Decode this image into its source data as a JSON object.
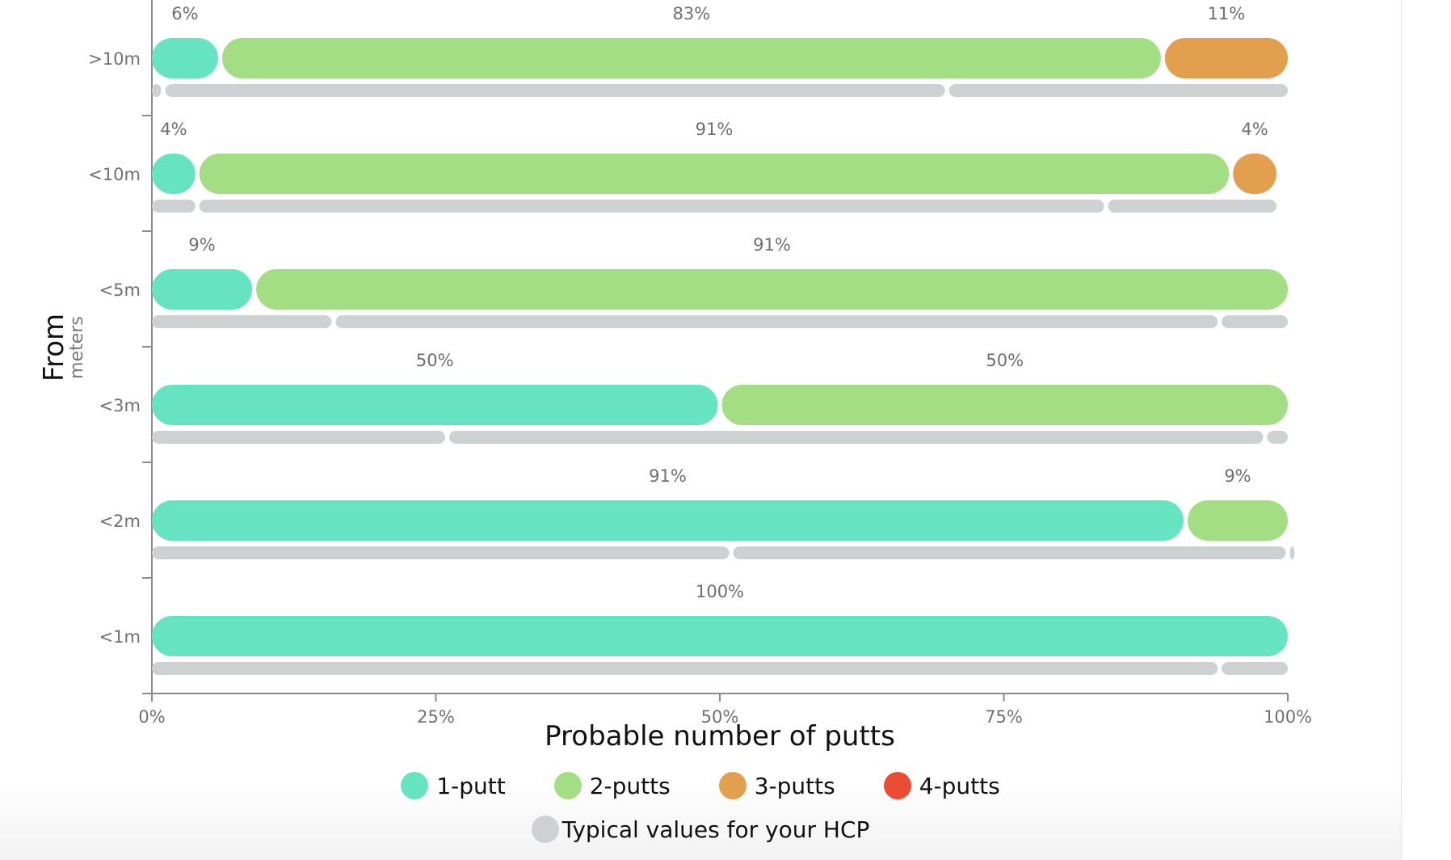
{
  "chart_data": {
    "type": "bar",
    "orientation": "horizontal",
    "stacked": true,
    "xlabel": "Probable number of putts",
    "ylabel": "From",
    "ylabel_sub": "meters",
    "xlim": [
      0,
      100
    ],
    "x_ticks": [
      "0%",
      "25%",
      "50%",
      "75%",
      "100%"
    ],
    "categories": [
      ">10m",
      "<10m",
      "<5m",
      "<3m",
      "<2m",
      "<1m"
    ],
    "series": [
      {
        "name": "1-putt",
        "color": "#66e4c2",
        "values": [
          6,
          4,
          9,
          50,
          91,
          100
        ]
      },
      {
        "name": "2-putts",
        "color": "#a3dd84",
        "values": [
          83,
          91,
          91,
          50,
          9,
          0
        ]
      },
      {
        "name": "3-putts",
        "color": "#e2a04f",
        "values": [
          11,
          4,
          0,
          0,
          0,
          0
        ]
      },
      {
        "name": "4-putts",
        "color": "#ec4c33",
        "values": [
          0,
          0,
          0,
          0,
          0,
          0
        ]
      }
    ],
    "data_labels": [
      [
        "6%",
        "83%",
        "11%"
      ],
      [
        "4%",
        "91%",
        "4%"
      ],
      [
        "9%",
        "91%"
      ],
      [
        "50%",
        "50%"
      ],
      [
        "91%",
        "9%"
      ],
      [
        "100%"
      ]
    ],
    "typical_series": {
      "name": "Typical values for your HCP",
      "color": "#cdd1d2",
      "values": [
        [
          1,
          69,
          30
        ],
        [
          4,
          80,
          15
        ],
        [
          16,
          78,
          6
        ],
        [
          26,
          72,
          2
        ],
        [
          51,
          49,
          0.6
        ],
        [
          94,
          6
        ]
      ]
    },
    "grid": false,
    "legend_position": "bottom-center"
  }
}
